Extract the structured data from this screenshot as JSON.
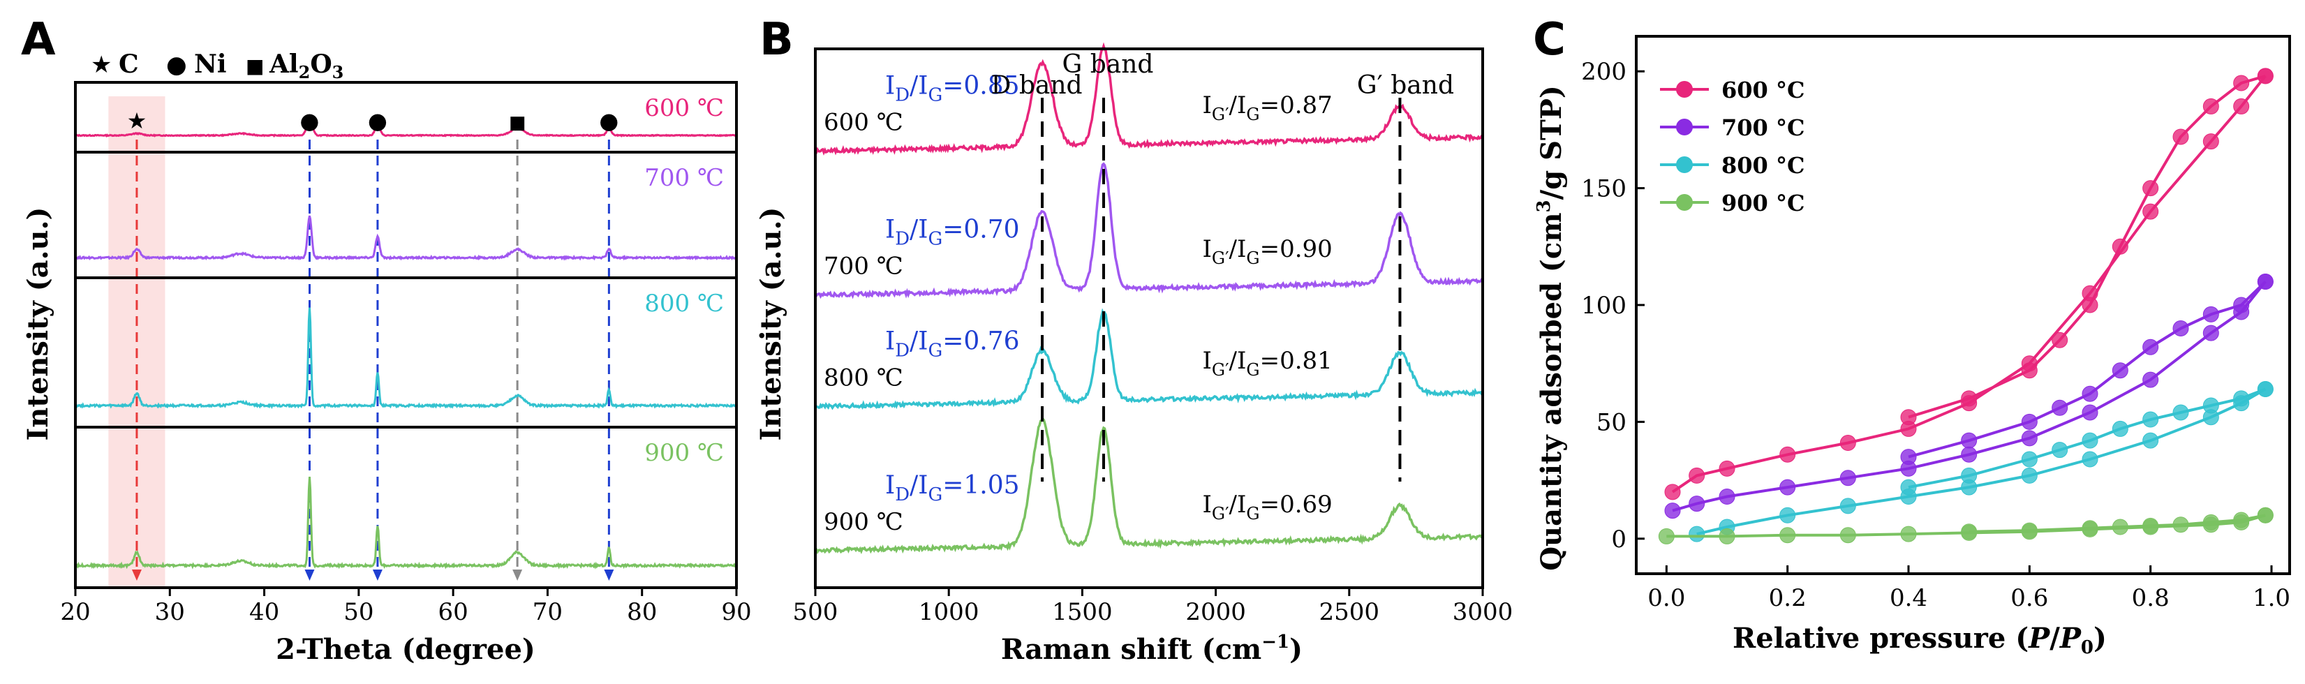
{
  "chart_data": [
    {
      "panel": "A",
      "type": "line",
      "title": "",
      "xlabel": "2-Theta (degree)",
      "ylabel": "Intensity (a.u.)",
      "xlim": [
        20,
        90
      ],
      "xticks": [
        20,
        30,
        40,
        50,
        60,
        70,
        80,
        90
      ],
      "ylim": [
        0,
        1
      ],
      "yticks": [],
      "grid": false,
      "legend": {
        "placement": "top-left",
        "entries": [
          {
            "marker": "★",
            "label": "C"
          },
          {
            "marker": "●",
            "label": "Ni"
          },
          {
            "marker": "■",
            "label": "Al2O3"
          }
        ]
      },
      "series": [
        {
          "name": "600 ℃",
          "color": "#e8257b",
          "baseline": 0.1,
          "noise": 0.012,
          "peaks": [
            {
              "x": 26.5,
              "h": 0.05,
              "w": 0.8
            },
            {
              "x": 37.5,
              "h": 0.05,
              "w": 1.2
            },
            {
              "x": 44.8,
              "h": 0.45,
              "w": 0.4
            },
            {
              "x": 52.0,
              "h": 0.3,
              "w": 0.35
            },
            {
              "x": 66.8,
              "h": 0.18,
              "w": 1.0
            },
            {
              "x": 76.5,
              "h": 0.18,
              "w": 0.35
            }
          ]
        },
        {
          "name": "700 ℃",
          "color": "#a057f0",
          "baseline": 0.1,
          "noise": 0.012,
          "peaks": [
            {
              "x": 26.5,
              "h": 0.12,
              "w": 0.5
            },
            {
              "x": 37.5,
              "h": 0.06,
              "w": 1.2
            },
            {
              "x": 44.8,
              "h": 0.6,
              "w": 0.3
            },
            {
              "x": 52.0,
              "h": 0.3,
              "w": 0.3
            },
            {
              "x": 66.8,
              "h": 0.12,
              "w": 1.0
            },
            {
              "x": 76.5,
              "h": 0.12,
              "w": 0.3
            }
          ]
        },
        {
          "name": "800 ℃",
          "color": "#33c2cf",
          "baseline": 0.1,
          "noise": 0.012,
          "peaks": [
            {
              "x": 26.5,
              "h": 0.15,
              "w": 0.4
            },
            {
              "x": 37.5,
              "h": 0.04,
              "w": 1.2
            },
            {
              "x": 44.8,
              "h": 1.2,
              "w": 0.2
            },
            {
              "x": 52.0,
              "h": 0.4,
              "w": 0.2
            },
            {
              "x": 66.8,
              "h": 0.12,
              "w": 1.0
            },
            {
              "x": 76.5,
              "h": 0.2,
              "w": 0.2
            }
          ]
        },
        {
          "name": "900 ℃",
          "color": "#7ac261",
          "baseline": 0.1,
          "noise": 0.012,
          "peaks": [
            {
              "x": 26.5,
              "h": 0.15,
              "w": 0.4
            },
            {
              "x": 37.5,
              "h": 0.05,
              "w": 1.2
            },
            {
              "x": 44.8,
              "h": 1.0,
              "w": 0.2
            },
            {
              "x": 52.0,
              "h": 0.45,
              "w": 0.2
            },
            {
              "x": 66.8,
              "h": 0.15,
              "w": 1.0
            },
            {
              "x": 76.5,
              "h": 0.2,
              "w": 0.2
            }
          ]
        }
      ],
      "reference_lines": [
        {
          "x": 26.5,
          "color": "#e83a3a",
          "phase": "C"
        },
        {
          "x": 44.8,
          "color": "#1f3fd1",
          "phase": "Ni"
        },
        {
          "x": 52.0,
          "color": "#1f3fd1",
          "phase": "Ni"
        },
        {
          "x": 66.8,
          "color": "#8a8a8a",
          "phase": "Al2O3"
        },
        {
          "x": 76.5,
          "color": "#1f3fd1",
          "phase": "Ni"
        }
      ],
      "highlight_band": {
        "x": [
          23.5,
          29.5
        ],
        "color": "#fce1e1"
      }
    },
    {
      "panel": "B",
      "type": "line",
      "title": "",
      "xlabel": "Raman shift (cm−1)",
      "ylabel": "Intensity (a.u.)",
      "xlim": [
        500,
        3000
      ],
      "xticks": [
        500,
        1000,
        1500,
        2000,
        2500,
        3000
      ],
      "ylim": [
        0,
        5.8
      ],
      "yticks": [],
      "grid": false,
      "band_labels": [
        {
          "name": "D band",
          "x": 1350
        },
        {
          "name": "G band",
          "x": 1580
        },
        {
          "name": "G′ band",
          "x": 2690
        }
      ],
      "series": [
        {
          "name": "600 ℃",
          "color": "#e8257b",
          "offset": 4.3,
          "noise": 0.04,
          "ratio_id_ig": "0.85",
          "ratio_ig2_ig": "0.87",
          "D_height": 0.9,
          "G_height": 1.05,
          "G2_height": 0.35
        },
        {
          "name": "700 ℃",
          "color": "#a057f0",
          "offset": 2.75,
          "noise": 0.04,
          "ratio_id_ig": "0.70",
          "ratio_ig2_ig": "0.90",
          "D_height": 0.85,
          "G_height": 1.35,
          "G2_height": 0.75
        },
        {
          "name": "800 ℃",
          "color": "#33c2cf",
          "offset": 1.55,
          "noise": 0.04,
          "ratio_id_ig": "0.76",
          "ratio_ig2_ig": "0.81",
          "D_height": 0.55,
          "G_height": 0.95,
          "G2_height": 0.45
        },
        {
          "name": "900 ℃",
          "color": "#7ac261",
          "offset": 0.0,
          "noise": 0.04,
          "ratio_id_ig": "1.05",
          "ratio_ig2_ig": "0.69",
          "D_height": 1.35,
          "G_height": 1.25,
          "G2_height": 0.35
        }
      ]
    },
    {
      "panel": "C",
      "type": "line",
      "title": "",
      "xlabel": "Relative pressure (P/P0)",
      "ylabel": "Quantity adsorbed (cm3/g STP)",
      "xlim": [
        -0.05,
        1.03
      ],
      "xticks": [
        0.0,
        0.2,
        0.4,
        0.6,
        0.8,
        1.0
      ],
      "ylim": [
        -15,
        215
      ],
      "yticks": [
        0,
        50,
        100,
        150,
        200
      ],
      "grid": false,
      "legend": {
        "placement": "top-left"
      },
      "series": [
        {
          "name": "600 °C",
          "color": "#e8257b",
          "adsorption": [
            [
              0.01,
              20
            ],
            [
              0.05,
              27
            ],
            [
              0.1,
              30
            ],
            [
              0.2,
              36
            ],
            [
              0.3,
              41
            ],
            [
              0.4,
              47
            ],
            [
              0.5,
              58
            ],
            [
              0.6,
              75
            ],
            [
              0.7,
              105
            ],
            [
              0.8,
              140
            ],
            [
              0.9,
              170
            ],
            [
              0.95,
              185
            ],
            [
              0.99,
              198
            ]
          ],
          "desorption": [
            [
              0.99,
              198
            ],
            [
              0.95,
              195
            ],
            [
              0.9,
              185
            ],
            [
              0.85,
              172
            ],
            [
              0.8,
              150
            ],
            [
              0.75,
              125
            ],
            [
              0.7,
              100
            ],
            [
              0.65,
              85
            ],
            [
              0.6,
              72
            ],
            [
              0.5,
              60
            ],
            [
              0.4,
              52
            ]
          ]
        },
        {
          "name": "700 °C",
          "color": "#8a2be2",
          "adsorption": [
            [
              0.01,
              12
            ],
            [
              0.05,
              15
            ],
            [
              0.1,
              18
            ],
            [
              0.2,
              22
            ],
            [
              0.3,
              26
            ],
            [
              0.4,
              30
            ],
            [
              0.5,
              36
            ],
            [
              0.6,
              43
            ],
            [
              0.7,
              54
            ],
            [
              0.8,
              68
            ],
            [
              0.9,
              88
            ],
            [
              0.95,
              97
            ],
            [
              0.99,
              110
            ]
          ],
          "desorption": [
            [
              0.99,
              110
            ],
            [
              0.95,
              100
            ],
            [
              0.9,
              96
            ],
            [
              0.85,
              90
            ],
            [
              0.8,
              82
            ],
            [
              0.75,
              72
            ],
            [
              0.7,
              62
            ],
            [
              0.65,
              56
            ],
            [
              0.6,
              50
            ],
            [
              0.5,
              42
            ],
            [
              0.4,
              35
            ]
          ]
        },
        {
          "name": "800 °C",
          "color": "#33c2cf",
          "adsorption": [
            [
              0.05,
              2
            ],
            [
              0.1,
              5
            ],
            [
              0.2,
              10
            ],
            [
              0.3,
              14
            ],
            [
              0.4,
              18
            ],
            [
              0.5,
              22
            ],
            [
              0.6,
              27
            ],
            [
              0.7,
              34
            ],
            [
              0.8,
              42
            ],
            [
              0.9,
              52
            ],
            [
              0.95,
              58
            ],
            [
              0.99,
              64
            ]
          ],
          "desorption": [
            [
              0.99,
              64
            ],
            [
              0.95,
              60
            ],
            [
              0.9,
              57
            ],
            [
              0.85,
              54
            ],
            [
              0.8,
              51
            ],
            [
              0.75,
              47
            ],
            [
              0.7,
              42
            ],
            [
              0.65,
              38
            ],
            [
              0.6,
              34
            ],
            [
              0.5,
              27
            ],
            [
              0.4,
              22
            ]
          ]
        },
        {
          "name": "900 °C",
          "color": "#7ac261",
          "adsorption": [
            [
              0.0,
              1
            ],
            [
              0.1,
              1
            ],
            [
              0.2,
              1.5
            ],
            [
              0.3,
              1.5
            ],
            [
              0.4,
              2
            ],
            [
              0.5,
              2.5
            ],
            [
              0.6,
              3
            ],
            [
              0.7,
              4
            ],
            [
              0.8,
              5
            ],
            [
              0.9,
              6
            ],
            [
              0.95,
              7
            ],
            [
              0.99,
              10
            ]
          ],
          "desorption": [
            [
              0.99,
              10
            ],
            [
              0.95,
              8
            ],
            [
              0.9,
              7
            ],
            [
              0.85,
              6
            ],
            [
              0.8,
              5.5
            ],
            [
              0.75,
              5
            ],
            [
              0.7,
              4.5
            ],
            [
              0.6,
              3.5
            ],
            [
              0.5,
              3
            ]
          ]
        }
      ]
    }
  ],
  "labels": {
    "panel_a": "A",
    "panel_b": "B",
    "panel_c": "C",
    "a_legend_c": "C",
    "a_legend_ni": "Ni",
    "a_legend_al": "Al",
    "a_legend_al_sub1": "2",
    "a_legend_al_o": "O",
    "a_legend_al_sub2": "3",
    "a_ylabel": "Intensity (a.u.)",
    "a_xlabel": "2-Theta (degree)",
    "b_ylabel": "Intensity (a.u.)",
    "b_xlabel_main": "Raman shift (cm",
    "b_xlabel_sup": "−1",
    "b_xlabel_end": ")",
    "c_ylabel_main": "Quantity adsorbed (cm",
    "c_ylabel_sup": "3",
    "c_ylabel_end": "/g STP)",
    "c_xlabel_main": "Relative pressure (",
    "c_xlabel_p": "P",
    "c_xlabel_slash": "/",
    "c_xlabel_p0": "P",
    "c_xlabel_sub0": "0",
    "c_xlabel_end": ")",
    "ratio_d_prefix": "I",
    "ratio_d_sub1": "D",
    "ratio_slash": "/I",
    "ratio_g_sub": "G",
    "ratio_eq": "=",
    "ratio_g2_sub": "G′",
    "a_marker_star": "★",
    "a_marker_dot": "●",
    "a_marker_square": "■"
  }
}
